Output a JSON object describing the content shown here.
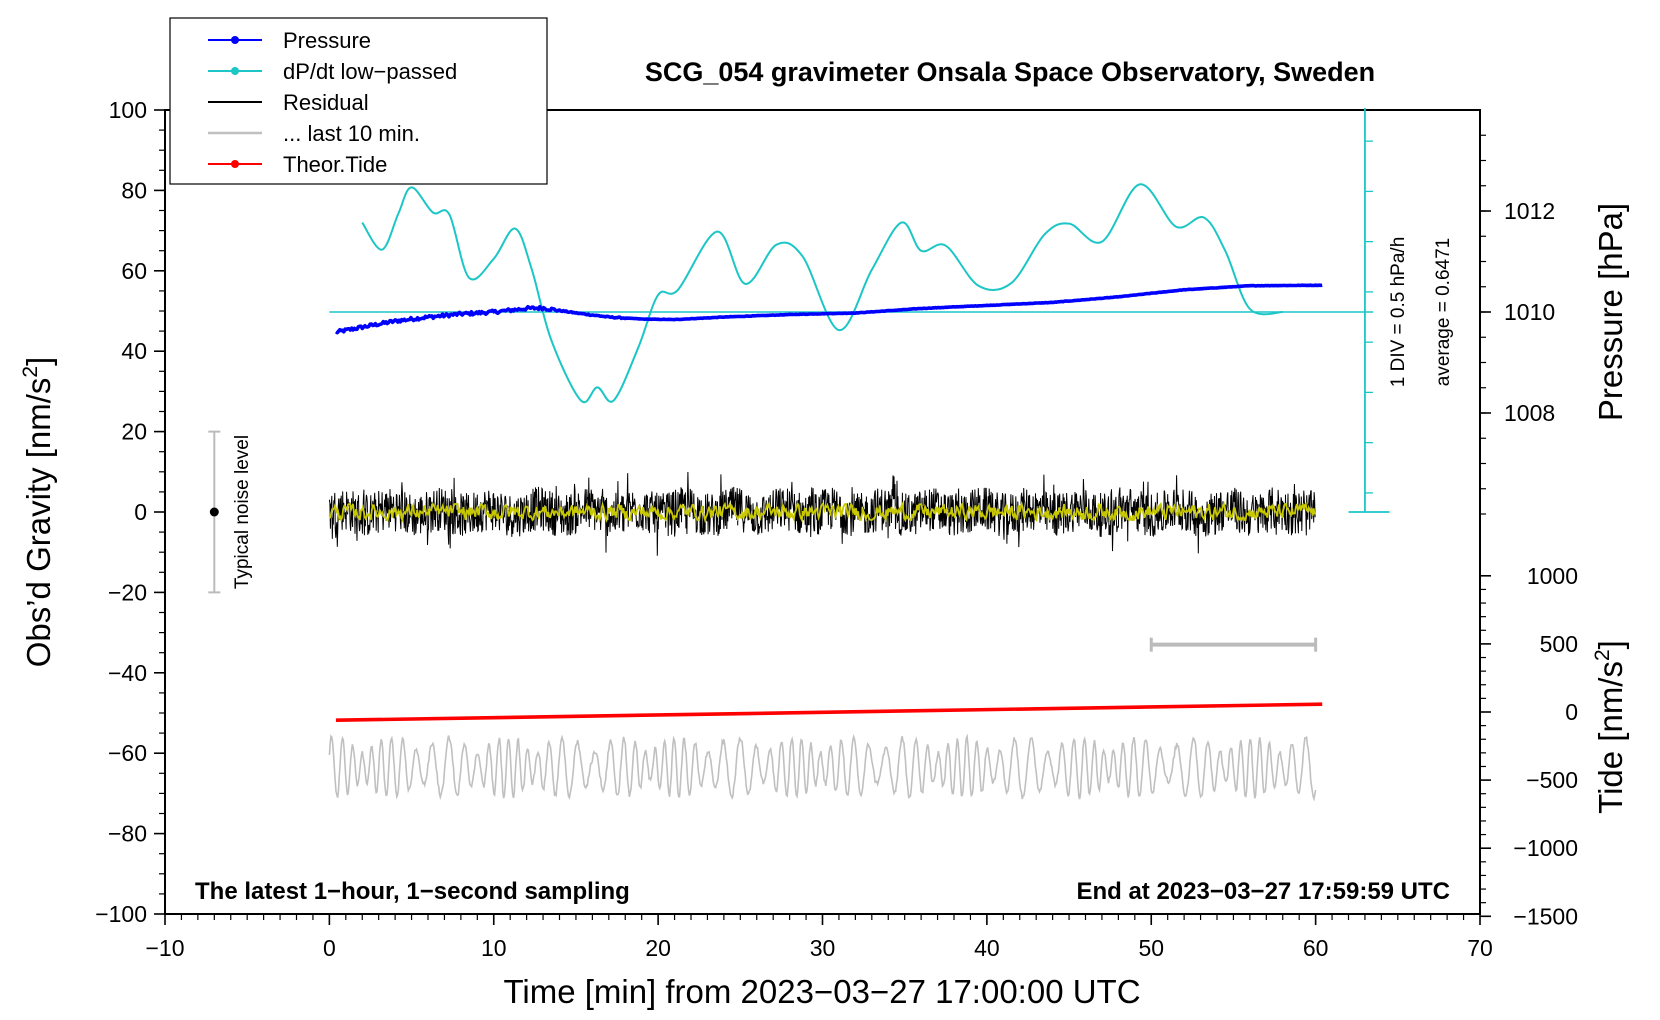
{
  "chart_data": {
    "type": "line",
    "title": "SCG_054 gravimeter Onsala Space Observatory, Sweden",
    "xlabel": "Time [min] from 2023−03−27 17:00:00 UTC",
    "xlim": [
      -10,
      70
    ],
    "x_ticks": [
      "−10",
      "0",
      "10",
      "20",
      "30",
      "40",
      "50",
      "60",
      "70"
    ],
    "y_left": {
      "label_main": "Obs’d Gravity [nm/s",
      "label_sup": "2",
      "label_end": "]",
      "ylim": [
        -100,
        100
      ],
      "ticks": [
        "−100",
        "−80",
        "−60",
        "−40",
        "−20",
        "0",
        "20",
        "40",
        "60",
        "80",
        "100"
      ]
    },
    "y_pressure": {
      "label": "Pressure [hPa]",
      "ticks": [
        "1008",
        "1010",
        "1012"
      ],
      "tick_values": [
        1008,
        1010,
        1012
      ],
      "zero_line_value": 1010
    },
    "y_tide": {
      "label_main": "Tide [nm/s",
      "label_sup": "2",
      "label_end": "]",
      "ticks": [
        "−1500",
        "−1000",
        "−500",
        "0",
        "500",
        "1000"
      ],
      "tick_values": [
        -1500,
        -1000,
        -500,
        0,
        500,
        1000
      ]
    },
    "legend": {
      "position": "top-left",
      "entries": [
        {
          "label": "Pressure",
          "color": "#0000ff",
          "marker": true
        },
        {
          "label": "dP/dt low−passed",
          "color": "#1cc6c6",
          "marker": true
        },
        {
          "label": "Residual",
          "color": "#000000",
          "marker": false
        },
        {
          "label": "... last 10 min.",
          "color": "#c0c0c0",
          "marker": false
        },
        {
          "label": "Theor.Tide",
          "color": "#ff0000",
          "marker": true
        }
      ]
    },
    "dpdt_scale_note": "1 DIV = 0.5 hPa/h",
    "dpdt_average_note": "average = 0.6471",
    "noise_bar": {
      "label": "Typical noise level",
      "center": 0,
      "half_range": 20,
      "x": -7
    },
    "last10_bar": {
      "x_start": 50,
      "x_end": 60
    },
    "bottom_left_note": "The latest 1−hour, 1−second sampling",
    "bottom_right_note": "End at 2023−03−27 17:59:59 UTC",
    "series": [
      {
        "name": "Pressure",
        "color": "#0000ff",
        "units": "hPa",
        "x": [
          0.4,
          2,
          4,
          6,
          8,
          10,
          12,
          13,
          15,
          17,
          19,
          21,
          24,
          28,
          32,
          36,
          40,
          44,
          48,
          52,
          56,
          60.4
        ],
        "values": [
          1009.6,
          1009.7,
          1009.82,
          1009.9,
          1009.96,
          1010.0,
          1010.07,
          1010.08,
          1009.98,
          1009.9,
          1009.86,
          1009.85,
          1009.9,
          1009.95,
          1009.98,
          1010.07,
          1010.13,
          1010.19,
          1010.3,
          1010.44,
          1010.52,
          1010.53
        ]
      },
      {
        "name": "dP/dt low−passed",
        "color": "#1cc6c6",
        "units": "hPa/h",
        "x": [
          2,
          3.2,
          4.2,
          5,
          6.3,
          7.3,
          8.5,
          10,
          11.3,
          12.3,
          13.5,
          15.3,
          16.3,
          17.3,
          18.8,
          20,
          21.2,
          23.6,
          25.3,
          27.2,
          28.8,
          31,
          33,
          34.8,
          36,
          37.5,
          39.5,
          41.5,
          43.5,
          45,
          47,
          49.3,
          51.5,
          53.2,
          54.5,
          56,
          58
        ],
        "values": [
          0.89,
          0.62,
          0.98,
          1.24,
          0.99,
          0.97,
          0.34,
          0.53,
          0.83,
          0.43,
          -0.28,
          -0.88,
          -0.75,
          -0.88,
          -0.35,
          0.17,
          0.22,
          0.8,
          0.28,
          0.67,
          0.55,
          -0.18,
          0.42,
          0.89,
          0.61,
          0.66,
          0.26,
          0.29,
          0.77,
          0.88,
          0.7,
          1.27,
          0.85,
          0.94,
          0.61,
          0.03,
          0.0
        ]
      },
      {
        "name": "Residual",
        "color": "#000000",
        "units": "nm/s^2",
        "x_range": [
          0,
          60
        ],
        "typical_range": [
          -8,
          8
        ],
        "extremes": [
          -14,
          15
        ]
      },
      {
        "name": "Residual low−passed",
        "color": "#c8c800",
        "units": "nm/s^2",
        "x_range": [
          0,
          60
        ],
        "typical_range": [
          -2,
          2
        ]
      },
      {
        "name": "... last 10 min.",
        "color": "#c0c0c0",
        "units": "nm/s^2",
        "x_range": [
          0,
          60
        ],
        "center": -63.5,
        "range": [
          -71,
          -56
        ]
      },
      {
        "name": "Theor.Tide",
        "color": "#ff0000",
        "units": "nm/s^2",
        "x": [
          0.4,
          60.4
        ],
        "values": [
          -51.8,
          -47.8
        ]
      }
    ]
  }
}
